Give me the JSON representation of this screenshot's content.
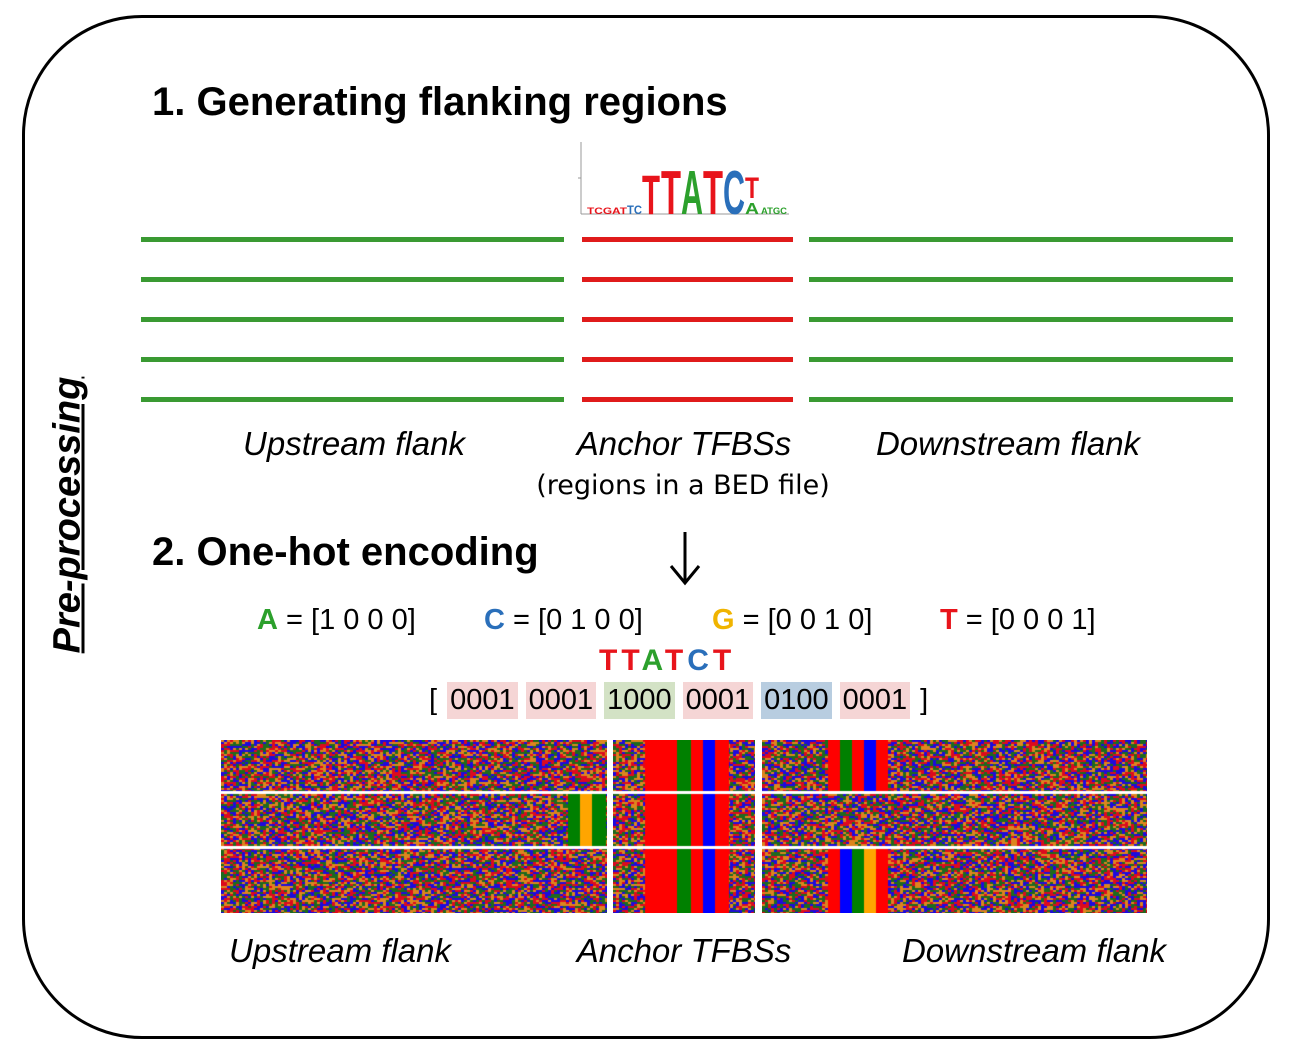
{
  "side_label": "Pre-processing",
  "section1": {
    "title": "1. Generating flanking regions"
  },
  "section2": {
    "title": "2. One-hot encoding"
  },
  "motif_logo": {
    "letters": [
      "T",
      "T",
      "A",
      "T",
      "C",
      "T"
    ]
  },
  "region_labels": {
    "upstream": "Upstream flank",
    "anchor": "Anchor TFBSs",
    "anchor_sub": "(regions in a BED file)",
    "downstream": "Downstream flank"
  },
  "encoding": [
    {
      "base": "A",
      "vector": "= [1 0 0 0]",
      "color": "#2ca02c"
    },
    {
      "base": "C",
      "vector": "= [0 1 0 0]",
      "color": "#2a6fba"
    },
    {
      "base": "G",
      "vector": "= [0 0 1 0]",
      "color": "#f0b400"
    },
    {
      "base": "T",
      "vector": "= [0 0 0 1]",
      "color": "#e8141b"
    }
  ],
  "example": {
    "letters": [
      "T",
      "T",
      "A",
      "T",
      "C",
      "T"
    ],
    "letter_colors": [
      "#e8141b",
      "#e8141b",
      "#2ca02c",
      "#e8141b",
      "#2a6fba",
      "#e8141b"
    ],
    "open_bracket": "[",
    "close_bracket": "]",
    "codes": [
      "0001",
      "0001",
      "1000",
      "0001",
      "0100",
      "0001"
    ],
    "code_bg": [
      "#f5d5d5",
      "#f5d5d5",
      "#d3e2c5",
      "#f5d5d5",
      "#b8cde0",
      "#f5d5d5"
    ]
  },
  "bottom_labels": {
    "upstream": "Upstream flank",
    "anchor": "Anchor TFBSs",
    "downstream": "Downstream flank"
  },
  "colors": {
    "flank_line": "#3a9a32",
    "anchor_line": "#e01b1b",
    "A": "#008000",
    "C": "#0000ff",
    "G": "#ffa500",
    "T": "#ff0000"
  }
}
